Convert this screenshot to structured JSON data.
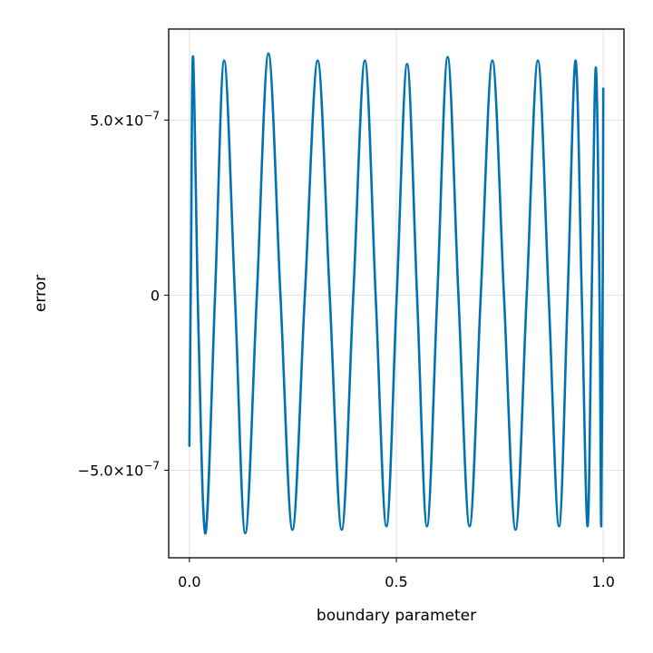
{
  "chart_data": {
    "type": "line",
    "title": "",
    "xlabel": "boundary parameter",
    "ylabel": "error",
    "xlim": [
      -0.05,
      1.05
    ],
    "ylim": [
      -7.5e-07,
      7.6e-07
    ],
    "grid": true,
    "legend": "none",
    "x_ticks": [
      {
        "value": 0.0,
        "label": "0.0"
      },
      {
        "value": 0.5,
        "label": "0.5"
      },
      {
        "value": 1.0,
        "label": "1.0"
      }
    ],
    "y_ticks": [
      {
        "value": 5e-07,
        "label": "5.0×10",
        "exp": "−7"
      },
      {
        "value": 0,
        "label": "0",
        "exp": ""
      },
      {
        "value": -5e-07,
        "label": "−5.0×10",
        "exp": "−7"
      }
    ],
    "series": [
      {
        "color": "#0072b2",
        "x": [
          0.0,
          0.004,
          0.009,
          0.022,
          0.039,
          0.062,
          0.084,
          0.11,
          0.135,
          0.163,
          0.191,
          0.22,
          0.249,
          0.279,
          0.31,
          0.339,
          0.368,
          0.396,
          0.424,
          0.45,
          0.476,
          0.501,
          0.526,
          0.55,
          0.574,
          0.599,
          0.624,
          0.65,
          0.677,
          0.704,
          0.732,
          0.76,
          0.788,
          0.815,
          0.842,
          0.868,
          0.893,
          0.914,
          0.933,
          0.948,
          0.962,
          0.972,
          0.982,
          0.991,
          0.995,
          0.9985,
          1.0
        ],
        "y": [
          -4.3e-07,
          1e-07,
          6.8e-07,
          -1e-07,
          -6.8e-07,
          0.0,
          6.7e-07,
          0.0,
          -6.8e-07,
          0.0,
          6.9e-07,
          0.0,
          -6.7e-07,
          0.0,
          6.7e-07,
          0.0,
          -6.7e-07,
          0.0,
          6.7e-07,
          0.0,
          -6.6e-07,
          0.0,
          6.6e-07,
          0.0,
          -6.6e-07,
          0.0,
          6.8e-07,
          0.0,
          -6.6e-07,
          0.0,
          6.7e-07,
          0.0,
          -6.7e-07,
          0.0,
          6.7e-07,
          0.0,
          -6.6e-07,
          0.0,
          6.7e-07,
          0.0,
          -6.6e-07,
          0.0,
          6.5e-07,
          0.0,
          -6.6e-07,
          0.0,
          5.9e-07
        ]
      }
    ]
  }
}
